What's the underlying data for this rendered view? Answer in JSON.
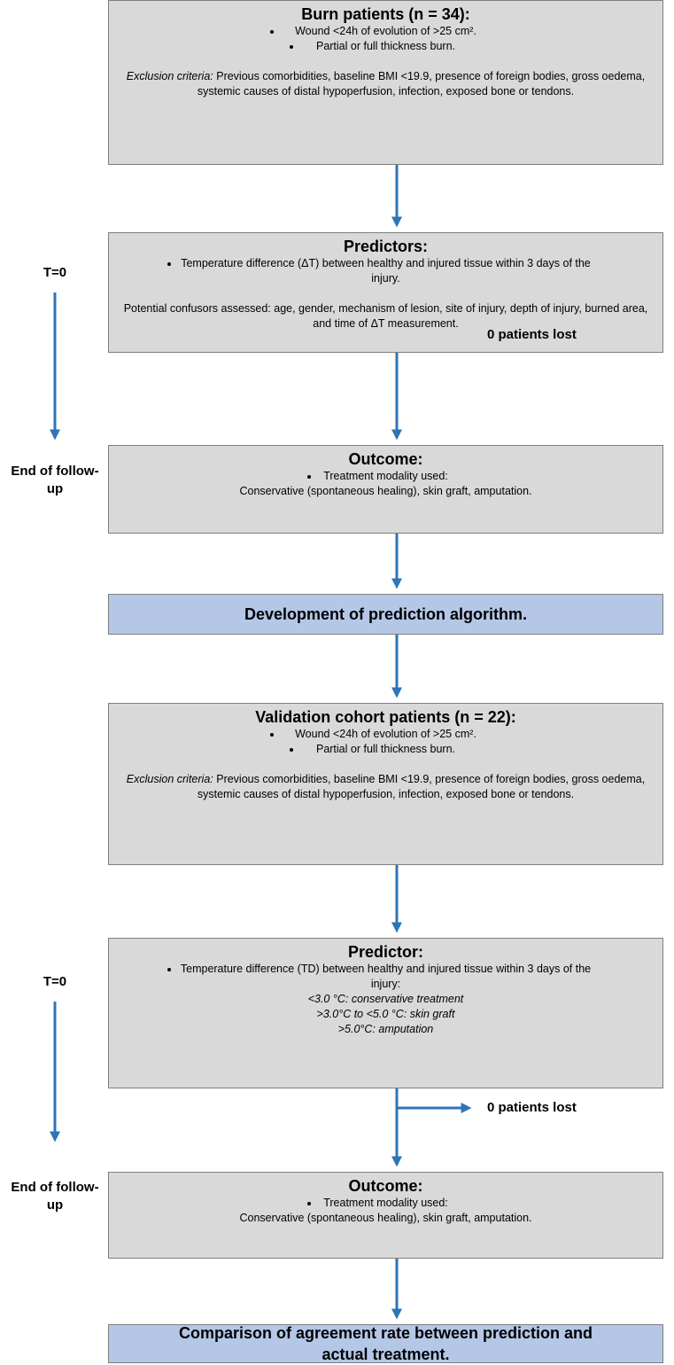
{
  "boxes": [
    {
      "title": "Burn patients (n = 34):",
      "bullets": [
        "Wound <24h of evolution of >25 cm².",
        "Partial or full thickness burn."
      ],
      "exclusion_label": "Exclusion criteria:",
      "exclusion_text": "Previous comorbidities, baseline BMI <19.9, presence of foreign bodies, gross oedema, systemic causes of distal hypoperfusion, infection, exposed bone or tendons."
    },
    {
      "title": "Predictors:",
      "bullets": [
        "Temperature difference (ΔT) between healthy and injured tissue within 3 days of the injury."
      ],
      "text": "Potential confusors assessed: age, gender, mechanism of lesion, site of injury, depth of injury, burned area, and time of ΔT measurement."
    },
    {
      "title": "Outcome:",
      "bullets": [
        "Treatment modality used:"
      ],
      "text": "Conservative (spontaneous healing), skin graft, amputation."
    },
    {
      "title": "Development of prediction algorithm."
    },
    {
      "title": "Validation cohort patients (n = 22):",
      "bullets": [
        "Wound <24h of evolution of >25 cm².",
        "Partial or full thickness burn."
      ],
      "exclusion_label": "Exclusion criteria:",
      "exclusion_text": "Previous comorbidities, baseline BMI <19.9, presence of foreign bodies, gross oedema, systemic causes of distal hypoperfusion, infection, exposed bone or tendons."
    },
    {
      "title": "Predictor:",
      "bullets": [
        "Temperature difference (TD) between healthy and injured tissue within 3 days of the injury:"
      ],
      "ranges": [
        "<3.0 °C: conservative treatment",
        ">3.0°C to <5.0 °C: skin graft",
        ">5.0°C: amputation"
      ]
    },
    {
      "title": "Outcome:",
      "bullets": [
        "Treatment modality used:"
      ],
      "text": "Conservative (spontaneous healing), skin graft, amputation."
    },
    {
      "title": "Comparison of agreement rate between prediction and actual treatment."
    }
  ],
  "side_labels": {
    "t0_first": "T=0",
    "end_first": "End of follow-up",
    "lost_first": "0 patients lost",
    "t0_second": "T=0",
    "end_second": "End of follow-up",
    "lost_second": "0 patients lost"
  }
}
